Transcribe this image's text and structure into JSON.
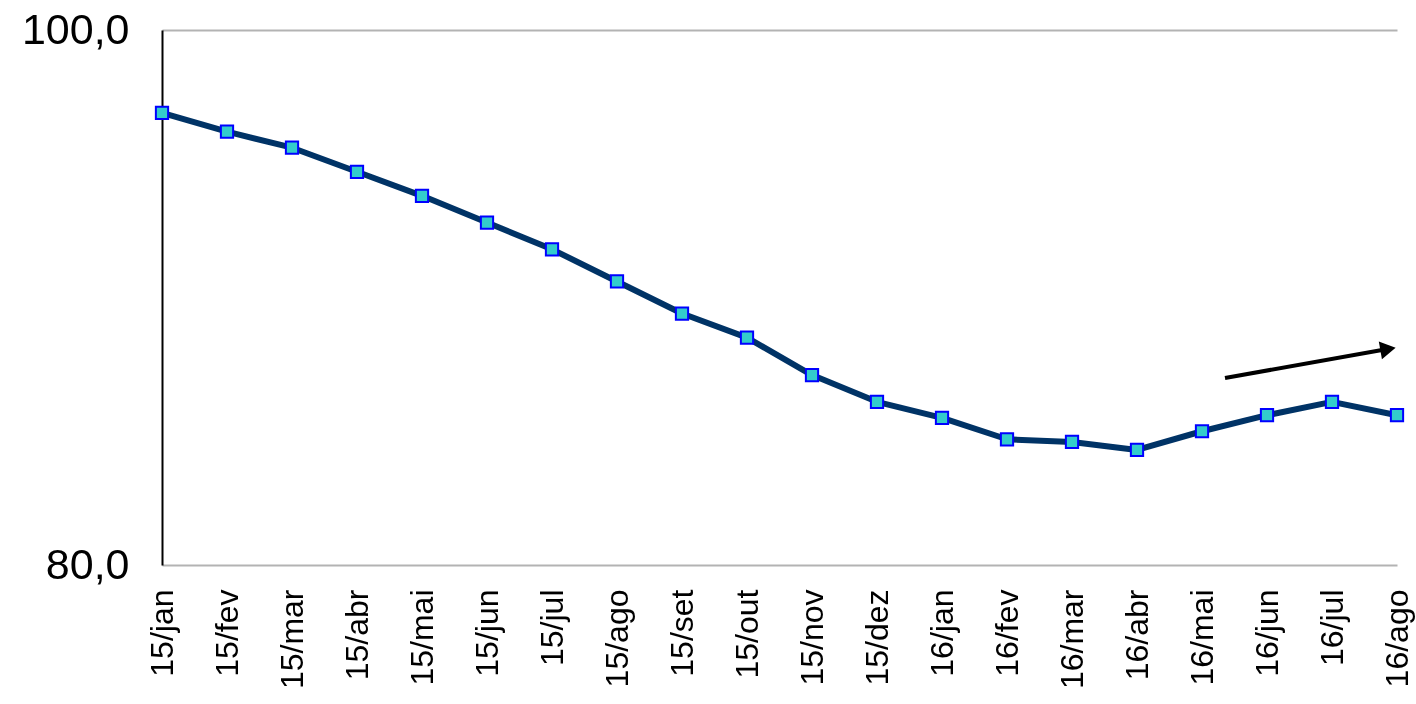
{
  "chart_data": {
    "type": "line",
    "categories": [
      "15/jan",
      "15/fev",
      "15/mar",
      "15/abr",
      "15/mai",
      "15/jun",
      "15/jul",
      "15/ago",
      "15/set",
      "15/out",
      "15/nov",
      "15/dez",
      "16/jan",
      "16/fev",
      "16/mar",
      "16/abr",
      "16/mai",
      "16/jun",
      "16/jul",
      "16/ago"
    ],
    "series": [
      {
        "color": "#003366",
        "values": [
          96.9,
          96.2,
          95.6,
          94.7,
          93.8,
          92.8,
          91.8,
          90.6,
          89.4,
          88.5,
          87.1,
          86.1,
          85.5,
          84.7,
          84.6,
          84.3,
          85.0,
          85.6,
          86.1,
          85.6
        ]
      }
    ],
    "ylim": [
      80,
      100
    ],
    "yticks": [
      {
        "value": 80,
        "label": "80,0"
      },
      {
        "value": 100,
        "label": "100,0"
      }
    ],
    "marker": "square",
    "line_style": "solid"
  }
}
